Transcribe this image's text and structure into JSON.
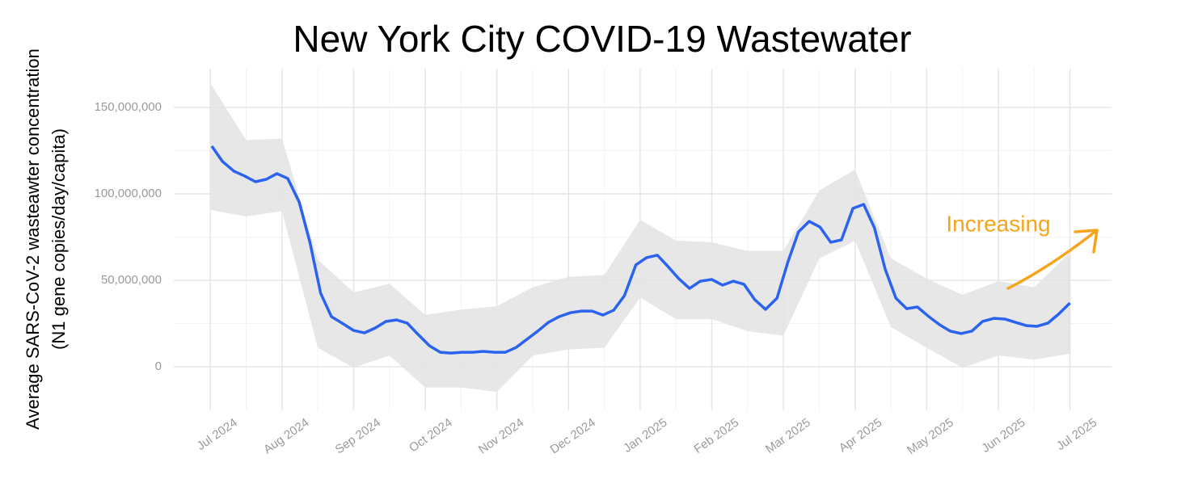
{
  "chart_data": {
    "type": "line",
    "title": "New York City COVID-19 Wastewater",
    "y_label": [
      "Average SARS-CoV-2 wasteawter concentration",
      "(N1 gene copies/day/capita)"
    ],
    "grid": true,
    "xlim": [
      -0.51,
      12.58
    ],
    "xticks": [
      {
        "value": 0,
        "label": "Jul 2024"
      },
      {
        "value": 1,
        "label": "Aug 2024"
      },
      {
        "value": 2,
        "label": "Sep 2024"
      },
      {
        "value": 3,
        "label": "Oct 2024"
      },
      {
        "value": 4,
        "label": "Nov 2024"
      },
      {
        "value": 5,
        "label": "Dec 2024"
      },
      {
        "value": 6,
        "label": "Jan 2025"
      },
      {
        "value": 7,
        "label": "Feb 2025"
      },
      {
        "value": 8,
        "label": "Mar 2025"
      },
      {
        "value": 9,
        "label": "Apr 2025"
      },
      {
        "value": 10,
        "label": "May 2025"
      },
      {
        "value": 11,
        "label": "Jun 2025"
      },
      {
        "value": 12,
        "label": "Jul 2025"
      }
    ],
    "ylim": [
      -25200000,
      172400000
    ],
    "yticks": [
      {
        "value": 0,
        "label": "0"
      },
      {
        "value": 50000000,
        "label": "50,000,000"
      },
      {
        "value": 100000000,
        "label": "100,000,000"
      },
      {
        "value": 150000000,
        "label": "150,000,000"
      }
    ],
    "x": [
      0.02,
      0.17,
      0.33,
      0.48,
      0.63,
      0.78,
      0.93,
      1.08,
      1.24,
      1.39,
      1.54,
      1.69,
      1.84,
      2.0,
      2.15,
      2.3,
      2.45,
      2.6,
      2.75,
      2.9,
      3.06,
      3.21,
      3.36,
      3.51,
      3.66,
      3.81,
      3.97,
      4.12,
      4.27,
      4.42,
      4.57,
      4.72,
      4.87,
      5.03,
      5.18,
      5.33,
      5.48,
      5.63,
      5.78,
      5.94,
      6.09,
      6.24,
      6.39,
      6.54,
      6.69,
      6.84,
      7.0,
      7.15,
      7.3,
      7.45,
      7.6,
      7.75,
      7.91,
      8.06,
      8.21,
      8.36,
      8.51,
      8.66,
      8.81,
      8.97,
      9.12,
      9.27,
      9.42,
      9.57,
      9.72,
      9.87,
      10.03,
      10.18,
      10.33,
      10.48,
      10.63,
      10.78,
      10.94,
      11.09,
      11.24,
      11.39,
      11.54,
      11.69,
      11.84,
      12.0
    ],
    "series": [
      {
        "color": "#2b63f0",
        "values": [
          127600000,
          118700000,
          113100000,
          110300000,
          107000000,
          108400000,
          111700000,
          108900000,
          95300000,
          72000000,
          42500000,
          29000000,
          25200000,
          21000000,
          19600000,
          22400000,
          26200000,
          27100000,
          25200000,
          18700000,
          12100000,
          8400000,
          7900000,
          8400000,
          8400000,
          8900000,
          8400000,
          8400000,
          11200000,
          15900000,
          20600000,
          25700000,
          29000000,
          31300000,
          32200000,
          32200000,
          29900000,
          32700000,
          41100000,
          58900000,
          63100000,
          64500000,
          57900000,
          50900000,
          45300000,
          49500000,
          50500000,
          47200000,
          49500000,
          47700000,
          38800000,
          33200000,
          39700000,
          60300000,
          78000000,
          84100000,
          80800000,
          72000000,
          73400000,
          91600000,
          93900000,
          80400000,
          56500000,
          39700000,
          33600000,
          34600000,
          29000000,
          24300000,
          20600000,
          19200000,
          20600000,
          26200000,
          28000000,
          27600000,
          25700000,
          23800000,
          23400000,
          25200000,
          30400000,
          36900000
        ]
      }
    ],
    "band": {
      "color": "#e3e3e3",
      "x": [
        0,
        0.5,
        1,
        1.5,
        2,
        2.5,
        3,
        3.5,
        4,
        4.5,
        5,
        5.5,
        6,
        6.5,
        7,
        7.5,
        8,
        8.5,
        9,
        9.5,
        10,
        10.5,
        11,
        11.5,
        12
      ],
      "upper": [
        164000000,
        131000000,
        132000000,
        62000000,
        43000000,
        48000000,
        30000000,
        33000000,
        35000000,
        46000000,
        52000000,
        53000000,
        85000000,
        73000000,
        72000000,
        67000000,
        67000000,
        102000000,
        114000000,
        62600000,
        51000000,
        41600000,
        49500000,
        46000000,
        66000000
      ],
      "lower": [
        90700000,
        86900000,
        90000000,
        11000000,
        -500000,
        6500000,
        -12000000,
        -12000000,
        -14500000,
        6500000,
        10000000,
        11000000,
        40000000,
        27600000,
        27600000,
        20600000,
        18000000,
        62600000,
        72900000,
        23000000,
        11000000,
        -500000,
        6500000,
        4200000,
        7500000
      ]
    },
    "annotation": {
      "text": "Increasing",
      "color": "#f5a51c"
    }
  }
}
